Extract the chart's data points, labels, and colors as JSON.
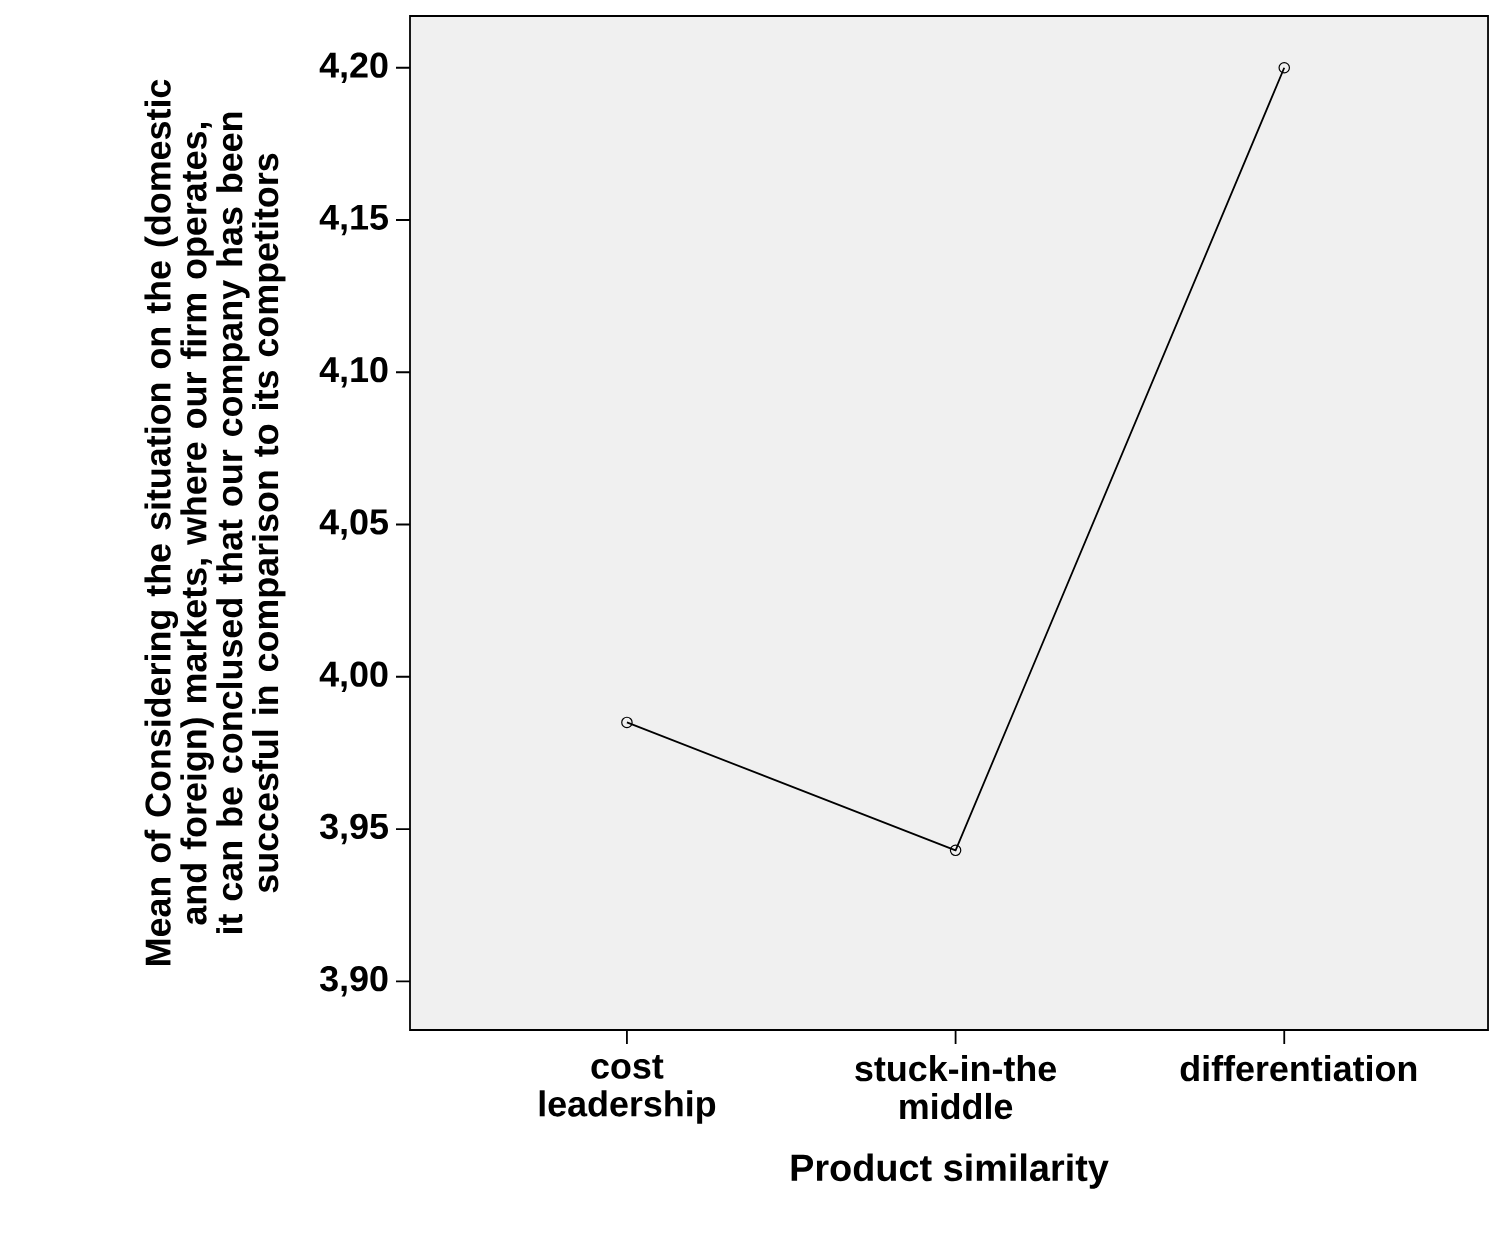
{
  "chart_data": {
    "type": "line",
    "xlabel": "Product similarity",
    "ylabel": "Mean of Considering the situation on the (domestic and foreign) markets, where our firm operates, it can be conclused that our company has been succesful in comparison to its competitors",
    "categories": [
      "cost leadership",
      "stuck-in-the middle",
      "differentiation"
    ],
    "series": [
      {
        "color": "#000000",
        "values": [
          3.985,
          3.943,
          4.2
        ]
      }
    ],
    "ylim": [
      3.884,
      4.217
    ],
    "yticks": [
      {
        "value": 3.9,
        "label": "3,90"
      },
      {
        "value": 3.95,
        "label": "3,95"
      },
      {
        "value": 4.0,
        "label": "4,00"
      },
      {
        "value": 4.05,
        "label": "4,05"
      },
      {
        "value": 4.1,
        "label": "4,10"
      },
      {
        "value": 4.15,
        "label": "4,15"
      },
      {
        "value": 4.2,
        "label": "4,20"
      }
    ],
    "grid": false,
    "marker": "circle",
    "line_style": "solid"
  }
}
